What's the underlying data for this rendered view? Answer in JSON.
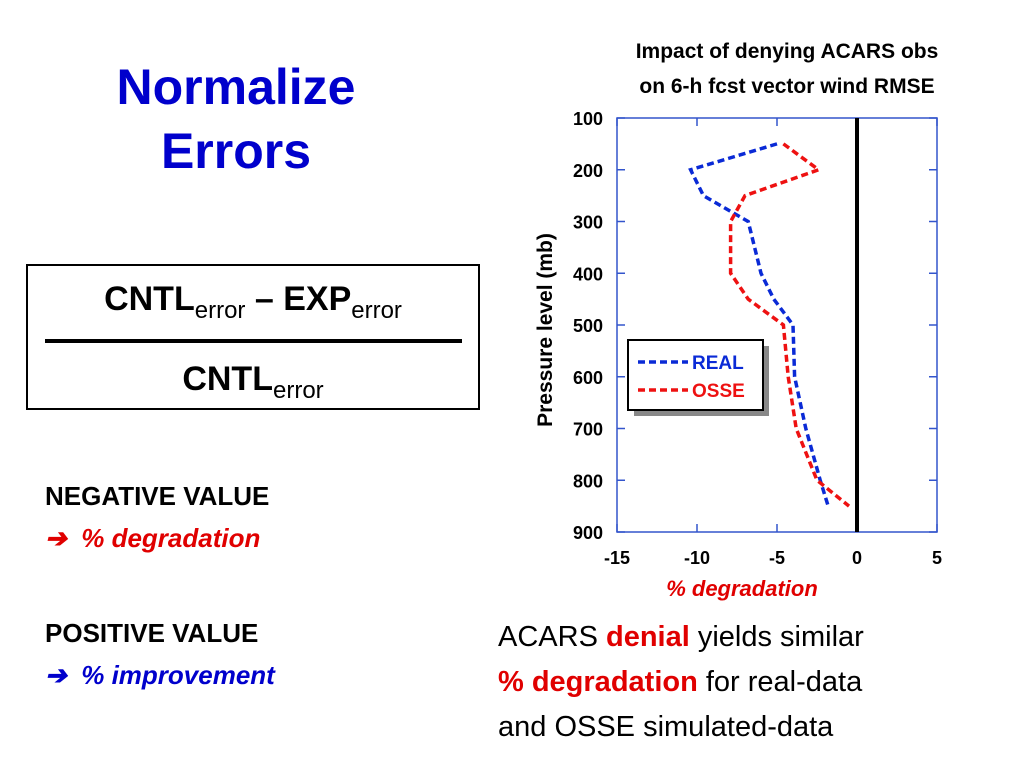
{
  "slide": {
    "title": [
      "Normalize",
      "Errors"
    ],
    "formula": {
      "numerator": [
        "CNTL",
        "error",
        " – EXP",
        "error"
      ],
      "denominator": [
        "CNTL",
        "error"
      ]
    },
    "notes": [
      {
        "heading": "NEGATIVE VALUE",
        "meaning": "➔  % degradation",
        "color": "#e00000"
      },
      {
        "heading": "POSITIVE VALUE",
        "meaning": "➔  % improvement",
        "color": "#0000cc"
      }
    ],
    "summary": [
      [
        {
          "text": "ACARS "
        },
        {
          "text": "denial",
          "emphasis": true
        },
        {
          "text": " yields similar"
        }
      ],
      [
        {
          "text": "% degradation",
          "emphasis": true
        },
        {
          "text": " for real-data"
        }
      ],
      [
        {
          "text": "and OSSE simulated-data"
        }
      ]
    ]
  },
  "chart_data": {
    "type": "line",
    "title": [
      "Impact of denying ACARS obs",
      "on 6-h fcst vector wind RMSE"
    ],
    "x_label": "% degradation",
    "y_label": "Pressure level (mb)",
    "levels": [
      150,
      200,
      250,
      300,
      400,
      450,
      500,
      600,
      700,
      800,
      850
    ],
    "series": [
      {
        "name": "REAL",
        "color": "#0a2ad6",
        "values": [
          -5,
          -10.4,
          -9.6,
          -6.8,
          -6,
          -5.2,
          -4,
          -3.9,
          -3.2,
          -2.3,
          -1.8
        ]
      },
      {
        "name": "OSSE",
        "color": "#ee1111",
        "values": [
          -4.6,
          -2.4,
          -7,
          -7.9,
          -7.9,
          -6.8,
          -4.6,
          -4.3,
          -3.8,
          -2.5,
          -0.5
        ]
      }
    ],
    "xlim": [
      -15,
      5
    ],
    "xticks": [
      -15,
      -10,
      -5,
      0,
      5
    ],
    "ylim": [
      100,
      900
    ],
    "yticks": [
      100,
      200,
      300,
      400,
      500,
      600,
      700,
      800,
      900
    ],
    "y_reversed": true,
    "reference_line": 0,
    "legend": "center left"
  }
}
